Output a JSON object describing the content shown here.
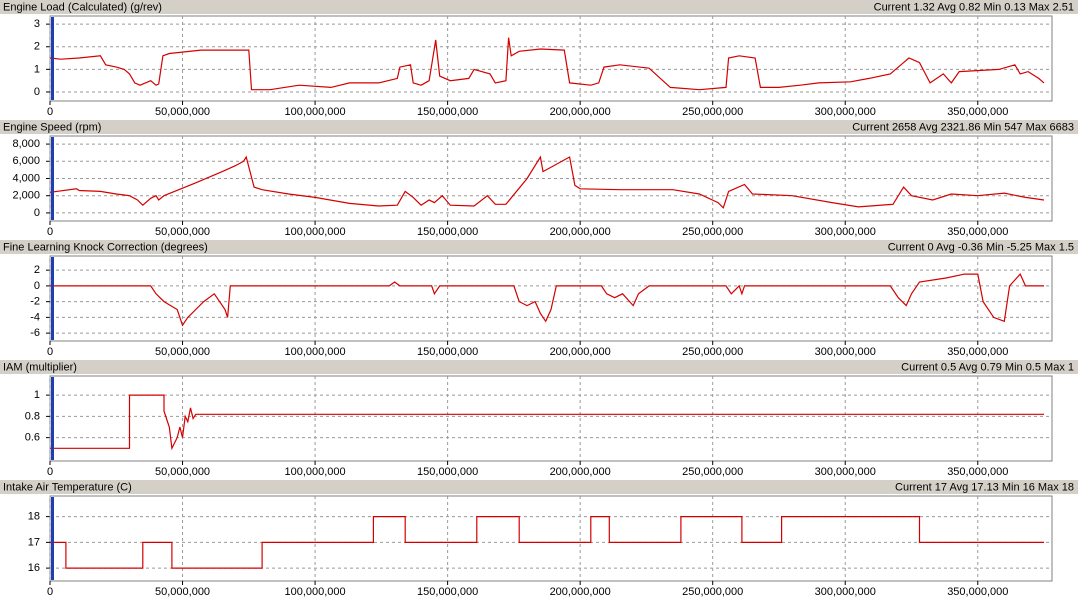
{
  "chart_data": [
    {
      "type": "line",
      "title": "Engine Load (Calculated) (g/rev)",
      "stats": "Current 1.32 Avg 0.82 Min 0.13 Max 2.51",
      "color": "#d40000",
      "grid": true,
      "xlim": [
        0,
        378000000
      ],
      "ylim": [
        -0.4,
        3.36
      ],
      "yticks": [
        0,
        1,
        2,
        3
      ],
      "xticks": [
        0,
        {
          "value": 50000000,
          "label": "50,000,000"
        },
        {
          "value": 100000000,
          "label": "100,000,000"
        },
        {
          "value": 150000000,
          "label": "150,000,000"
        },
        {
          "value": 200000000,
          "label": "200,000,000"
        },
        {
          "value": 250000000,
          "label": "250,000,000"
        },
        {
          "value": 300000000,
          "label": "300,000,000"
        },
        {
          "value": 350000000,
          "label": "350,000,000"
        }
      ],
      "x": [
        0,
        4000000,
        11000000,
        19000000,
        21000000,
        25000000,
        28000000,
        30000000,
        32000000,
        34000000,
        38000000,
        40000000,
        41000000,
        42600000,
        45000000,
        57000000,
        68000000,
        75000000,
        76000000,
        83000000,
        94000000,
        106000000,
        113000000,
        124000000,
        131000000,
        132000000,
        136000000,
        137000000,
        140000000,
        143000000,
        144000000,
        145500000,
        147000000,
        151000000,
        158000000,
        160000000,
        166000000,
        168000000,
        172000000,
        173000000,
        174000000,
        177000000,
        185000000,
        194000000,
        196000000,
        204000000,
        207000000,
        209000000,
        215000000,
        226000000,
        234000000,
        245000000,
        255000000,
        256000000,
        260000000,
        266000000,
        268000000,
        275000000,
        283000000,
        290000000,
        302000000,
        309000000,
        317000000,
        322000000,
        324000000,
        328000000,
        332000000,
        337000000,
        340000000,
        343000000,
        358000000,
        364000000,
        366000000,
        369000000,
        373000000,
        375000000
      ],
      "values": [
        1.5,
        1.45,
        1.5,
        1.6,
        1.2,
        1.1,
        1.0,
        0.8,
        0.4,
        0.3,
        0.5,
        0.3,
        0.35,
        1.6,
        1.7,
        1.85,
        1.85,
        1.85,
        0.1,
        0.1,
        0.3,
        0.2,
        0.4,
        0.4,
        0.6,
        1.1,
        1.2,
        0.4,
        0.3,
        0.5,
        1.2,
        2.3,
        0.7,
        0.5,
        0.6,
        1.0,
        0.8,
        0.4,
        0.5,
        2.4,
        1.6,
        1.8,
        1.9,
        1.85,
        0.4,
        0.3,
        0.4,
        1.1,
        1.2,
        1.05,
        0.2,
        0.1,
        0.2,
        1.5,
        1.6,
        1.5,
        0.2,
        0.2,
        0.3,
        0.4,
        0.45,
        0.6,
        0.8,
        1.3,
        1.5,
        1.3,
        0.4,
        0.8,
        0.4,
        0.9,
        1.0,
        1.2,
        0.8,
        0.9,
        0.6,
        0.4
      ]
    },
    {
      "type": "line",
      "title": "Engine Speed (rpm)",
      "stats": "Current 2658 Avg 2321.86 Min 547 Max 6683",
      "color": "#d40000",
      "grid": true,
      "xlim": [
        0,
        378000000
      ],
      "ylim": [
        -940,
        8940
      ],
      "yticks": [
        0,
        {
          "value": 2000,
          "label": "2,000"
        },
        {
          "value": 4000,
          "label": "4,000"
        },
        {
          "value": 6000,
          "label": "6,000"
        },
        {
          "value": 8000,
          "label": "8,000"
        }
      ],
      "xticks": [
        0,
        {
          "value": 50000000,
          "label": "50,000,000"
        },
        {
          "value": 100000000,
          "label": "100,000,000"
        },
        {
          "value": 150000000,
          "label": "150,000,000"
        },
        {
          "value": 200000000,
          "label": "200,000,000"
        },
        {
          "value": 250000000,
          "label": "250,000,000"
        },
        {
          "value": 300000000,
          "label": "300,000,000"
        },
        {
          "value": 350000000,
          "label": "350,000,000"
        }
      ],
      "x": [
        0,
        10000000,
        11000000,
        19000000,
        25000000,
        30000000,
        33000000,
        35000000,
        38000000,
        40000000,
        41000000,
        43000000,
        55000000,
        65000000,
        70000000,
        73000000,
        74000000,
        77000000,
        80000000,
        90000000,
        100000000,
        113000000,
        124000000,
        131000000,
        134000000,
        137000000,
        140000000,
        143000000,
        145000000,
        148000000,
        151000000,
        160000000,
        165000000,
        168000000,
        172000000,
        180000000,
        185000000,
        186000000,
        196000000,
        198000000,
        200000000,
        215000000,
        235000000,
        245000000,
        252000000,
        254000000,
        256000000,
        262000000,
        265000000,
        280000000,
        295000000,
        305000000,
        318000000,
        322000000,
        325000000,
        333000000,
        340000000,
        350000000,
        360000000,
        368000000,
        375000000
      ],
      "values": [
        2400,
        2800,
        2600,
        2500,
        2200,
        2000,
        1500,
        900,
        1700,
        2000,
        1500,
        2000,
        3500,
        4800,
        5500,
        6000,
        6500,
        3000,
        2700,
        2200,
        1800,
        1100,
        800,
        900,
        2500,
        1800,
        900,
        1500,
        1200,
        2000,
        900,
        800,
        2000,
        1000,
        1000,
        4000,
        6500,
        4800,
        6500,
        3200,
        2800,
        2700,
        2700,
        2200,
        1200,
        600,
        2500,
        3300,
        2200,
        2000,
        1200,
        700,
        1000,
        3000,
        2000,
        1500,
        2200,
        2000,
        2300,
        1800,
        1500
      ]
    },
    {
      "type": "line",
      "title": "Fine Learning Knock Correction (degrees)",
      "stats": "Current 0 Avg -0.36 Min -5.25 Max 1.5",
      "color": "#d40000",
      "grid": true,
      "xlim": [
        0,
        378000000
      ],
      "ylim": [
        -7,
        3.8
      ],
      "yticks": [
        -6,
        -4,
        -2,
        0,
        2
      ],
      "xticks": [
        0,
        {
          "value": 50000000,
          "label": "50,000,000"
        },
        {
          "value": 100000000,
          "label": "100,000,000"
        },
        {
          "value": 150000000,
          "label": "150,000,000"
        },
        {
          "value": 200000000,
          "label": "200,000,000"
        },
        {
          "value": 250000000,
          "label": "250,000,000"
        },
        {
          "value": 300000000,
          "label": "300,000,000"
        },
        {
          "value": 350000000,
          "label": "350,000,000"
        }
      ],
      "x": [
        0,
        38000000,
        40000000,
        43000000,
        48000000,
        50000000,
        52000000,
        55000000,
        58000000,
        62000000,
        66000000,
        67000000,
        68000000,
        128000000,
        130000000,
        132000000,
        144000000,
        145000000,
        147000000,
        175000000,
        177000000,
        180000000,
        183000000,
        185000000,
        187000000,
        189000000,
        191000000,
        208000000,
        210000000,
        213000000,
        216000000,
        220000000,
        222000000,
        226000000,
        255000000,
        257000000,
        260000000,
        261000000,
        262000000,
        317000000,
        320000000,
        323000000,
        325000000,
        328000000,
        338000000,
        345000000,
        350000000,
        352000000,
        356000000,
        360000000,
        362000000,
        366000000,
        368000000,
        375000000
      ],
      "values": [
        0,
        0,
        -1,
        -2,
        -3,
        -5,
        -4,
        -3,
        -2,
        -1,
        -3,
        -4,
        0,
        0,
        0.5,
        0,
        0,
        -1,
        0,
        0,
        -2,
        -2.5,
        -2,
        -3.5,
        -4.5,
        -3,
        0,
        0,
        -1,
        -1.5,
        -1,
        -2.5,
        -1,
        0,
        0,
        -1,
        0,
        -1,
        0,
        0,
        -1.5,
        -2.5,
        -1,
        0.5,
        1,
        1.5,
        1.5,
        -2,
        -4,
        -4.5,
        0,
        1.5,
        0,
        0
      ]
    },
    {
      "type": "line",
      "title": "IAM (multiplier)",
      "stats": "Current 0.5 Avg 0.79 Min 0.5 Max 1",
      "color": "#d40000",
      "grid": true,
      "xlim": [
        0,
        378000000
      ],
      "ylim": [
        0.38,
        1.18
      ],
      "yticks": [
        0.6,
        0.8,
        1
      ],
      "xticks": [
        0,
        {
          "value": 50000000,
          "label": "50,000,000"
        },
        {
          "value": 100000000,
          "label": "100,000,000"
        },
        {
          "value": 150000000,
          "label": "150,000,000"
        },
        {
          "value": 200000000,
          "label": "200,000,000"
        },
        {
          "value": 250000000,
          "label": "250,000,000"
        },
        {
          "value": 300000000,
          "label": "300,000,000"
        },
        {
          "value": 350000000,
          "label": "350,000,000"
        }
      ],
      "x": [
        0,
        30000000,
        30000000,
        43000000,
        43000000,
        45000000,
        46000000,
        48000000,
        49000000,
        50000000,
        51000000,
        52000000,
        53000000,
        54000000,
        55000000,
        375000000
      ],
      "values": [
        0.5,
        0.5,
        1,
        1,
        0.85,
        0.7,
        0.5,
        0.6,
        0.7,
        0.6,
        0.8,
        0.75,
        0.88,
        0.78,
        0.82,
        0.82
      ]
    },
    {
      "type": "line",
      "title": "Intake Air Temperature (C)",
      "stats": "Current 17 Avg 17.13 Min 16 Max 18",
      "color": "#d40000",
      "grid": true,
      "xlim": [
        0,
        378000000
      ],
      "ylim": [
        15.5,
        18.8
      ],
      "yticks": [
        16,
        17,
        18
      ],
      "xticks": [
        0,
        {
          "value": 50000000,
          "label": "50,000,000"
        },
        {
          "value": 100000000,
          "label": "100,000,000"
        },
        {
          "value": 150000000,
          "label": "150,000,000"
        },
        {
          "value": 200000000,
          "label": "200,000,000"
        },
        {
          "value": 250000000,
          "label": "250,000,000"
        },
        {
          "value": 300000000,
          "label": "300,000,000"
        },
        {
          "value": 350000000,
          "label": "350,000,000"
        }
      ],
      "x": [
        0,
        6000000,
        6000000,
        35000000,
        35000000,
        46000000,
        46000000,
        80000000,
        80000000,
        122000000,
        122000000,
        134000000,
        134000000,
        161000000,
        161000000,
        177000000,
        177000000,
        204000000,
        204000000,
        211000000,
        211000000,
        238000000,
        238000000,
        261000000,
        261000000,
        276000000,
        276000000,
        328000000,
        328000000,
        375000000
      ],
      "values": [
        17,
        17,
        16,
        16,
        17,
        17,
        16,
        16,
        17,
        17,
        18,
        18,
        17,
        17,
        18,
        18,
        17,
        17,
        18,
        18,
        17,
        17,
        18,
        18,
        17,
        17,
        18,
        18,
        17,
        17
      ]
    }
  ]
}
